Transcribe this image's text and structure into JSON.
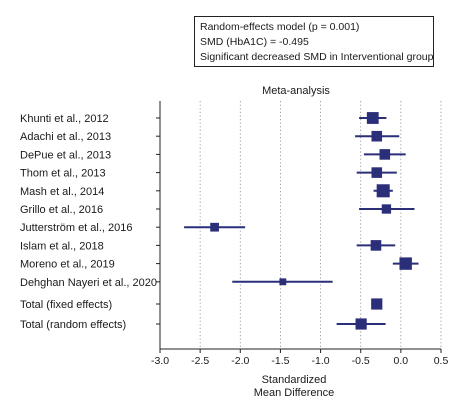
{
  "info_box": {
    "line1": "Random-effects model (p = 0.001)",
    "line2": "SMD (HbA1C) = -0.495",
    "line3": "Significant decreased SMD in Interventional group"
  },
  "chart_data": {
    "type": "forest",
    "title": "Meta-analysis",
    "xlabel_line1": "Standardized",
    "xlabel_line2": "Mean Difference",
    "xlim": [
      -3.0,
      0.5
    ],
    "xticks": [
      -3.0,
      -2.5,
      -2.0,
      -1.5,
      -1.0,
      -0.5,
      0.0,
      0.5
    ],
    "xtick_labels": [
      "-3.0",
      "-2.5",
      "-2.0",
      "-1.5",
      "-1.0",
      "-0.5",
      "0.0",
      "0.5"
    ],
    "colors": {
      "marker": "#2b2f7a",
      "grid": "#888888",
      "axis": "#222222"
    },
    "studies": [
      {
        "name": "Khunti et al., 2012",
        "smd": -0.35,
        "lower": -0.52,
        "upper": -0.18,
        "weight": 11
      },
      {
        "name": "Adachi et al., 2013",
        "smd": -0.3,
        "lower": -0.57,
        "upper": -0.02,
        "weight": 9
      },
      {
        "name": "DePue et al., 2013",
        "smd": -0.2,
        "lower": -0.46,
        "upper": 0.06,
        "weight": 9
      },
      {
        "name": "Thom et al., 2013",
        "smd": -0.3,
        "lower": -0.55,
        "upper": -0.05,
        "weight": 9
      },
      {
        "name": "Mash et al., 2014",
        "smd": -0.22,
        "lower": -0.34,
        "upper": -0.1,
        "weight": 13
      },
      {
        "name": "Grillo et al., 2016",
        "smd": -0.18,
        "lower": -0.52,
        "upper": 0.17,
        "weight": 7
      },
      {
        "name": "Jutterström et al., 2016",
        "smd": -2.32,
        "lower": -2.7,
        "upper": -1.94,
        "weight": 6
      },
      {
        "name": "Islam et al., 2018",
        "smd": -0.31,
        "lower": -0.55,
        "upper": -0.07,
        "weight": 9
      },
      {
        "name": "Moreno et al., 2019",
        "smd": 0.06,
        "lower": -0.1,
        "upper": 0.22,
        "weight": 12
      },
      {
        "name": "Dehghan Nayeri et al., 2020",
        "smd": -1.47,
        "lower": -2.1,
        "upper": -0.85,
        "weight": 3
      }
    ],
    "totals": [
      {
        "name": "Total (fixed effects)",
        "smd": -0.3,
        "lower": -0.37,
        "upper": -0.24,
        "weight": 10
      },
      {
        "name": "Total (random effects)",
        "smd": -0.495,
        "lower": -0.8,
        "upper": -0.19,
        "weight": 10
      }
    ]
  }
}
